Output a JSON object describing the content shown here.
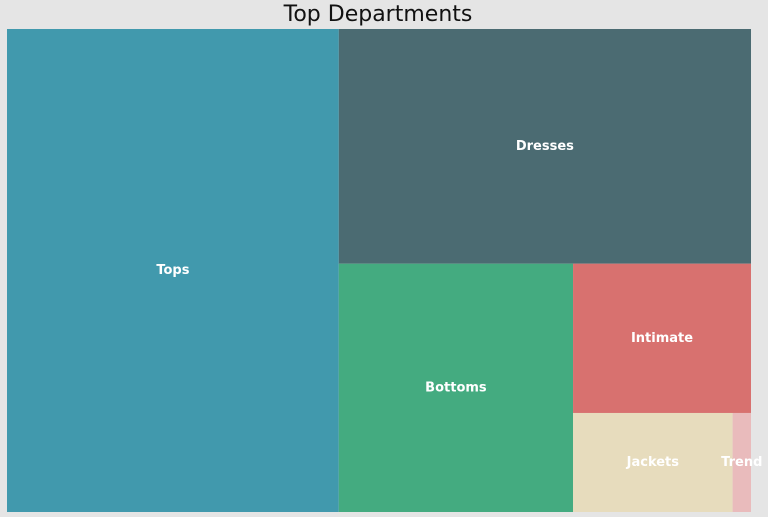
{
  "chart_data": {
    "type": "treemap",
    "title": "Top Departments",
    "categories": [
      "Tops",
      "Dresses",
      "Bottoms",
      "Intimate",
      "Jackets",
      "Trend"
    ],
    "values": [
      10468,
      6319,
      3799,
      1735,
      1032,
      119
    ],
    "colors": [
      "#4199ad",
      "#4b6b72",
      "#44ab80",
      "#d8716f",
      "#e7dcbd",
      "#e9bbbc"
    ]
  }
}
